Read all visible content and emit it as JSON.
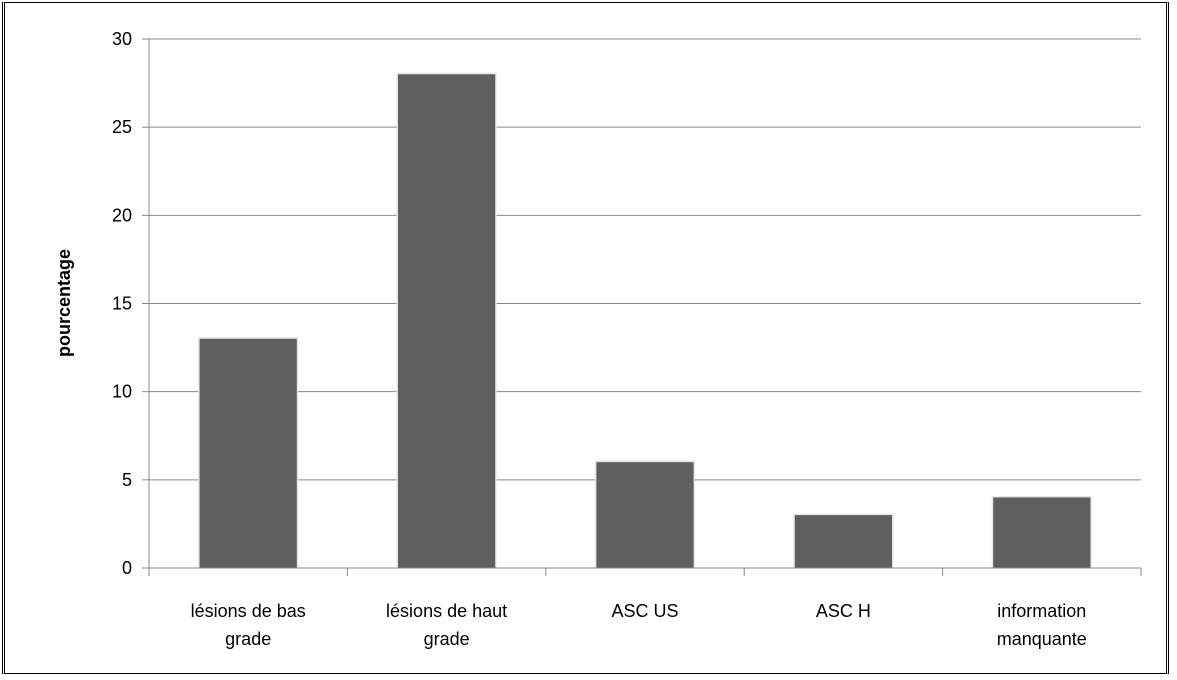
{
  "chart_data": {
    "type": "bar",
    "categories": [
      [
        "lésions de bas",
        "grade"
      ],
      [
        "lésions de haut",
        "grade"
      ],
      [
        "ASC US"
      ],
      [
        "ASC H"
      ],
      [
        "information",
        "manquante"
      ]
    ],
    "values": [
      13,
      28,
      6,
      3,
      4
    ],
    "ylabel": "pourcentage",
    "ylim": [
      0,
      30
    ],
    "yticks": [
      0,
      5,
      10,
      15,
      20,
      25,
      30
    ],
    "grid": true,
    "bar_color": "#5f5f5f",
    "legend": "none"
  }
}
